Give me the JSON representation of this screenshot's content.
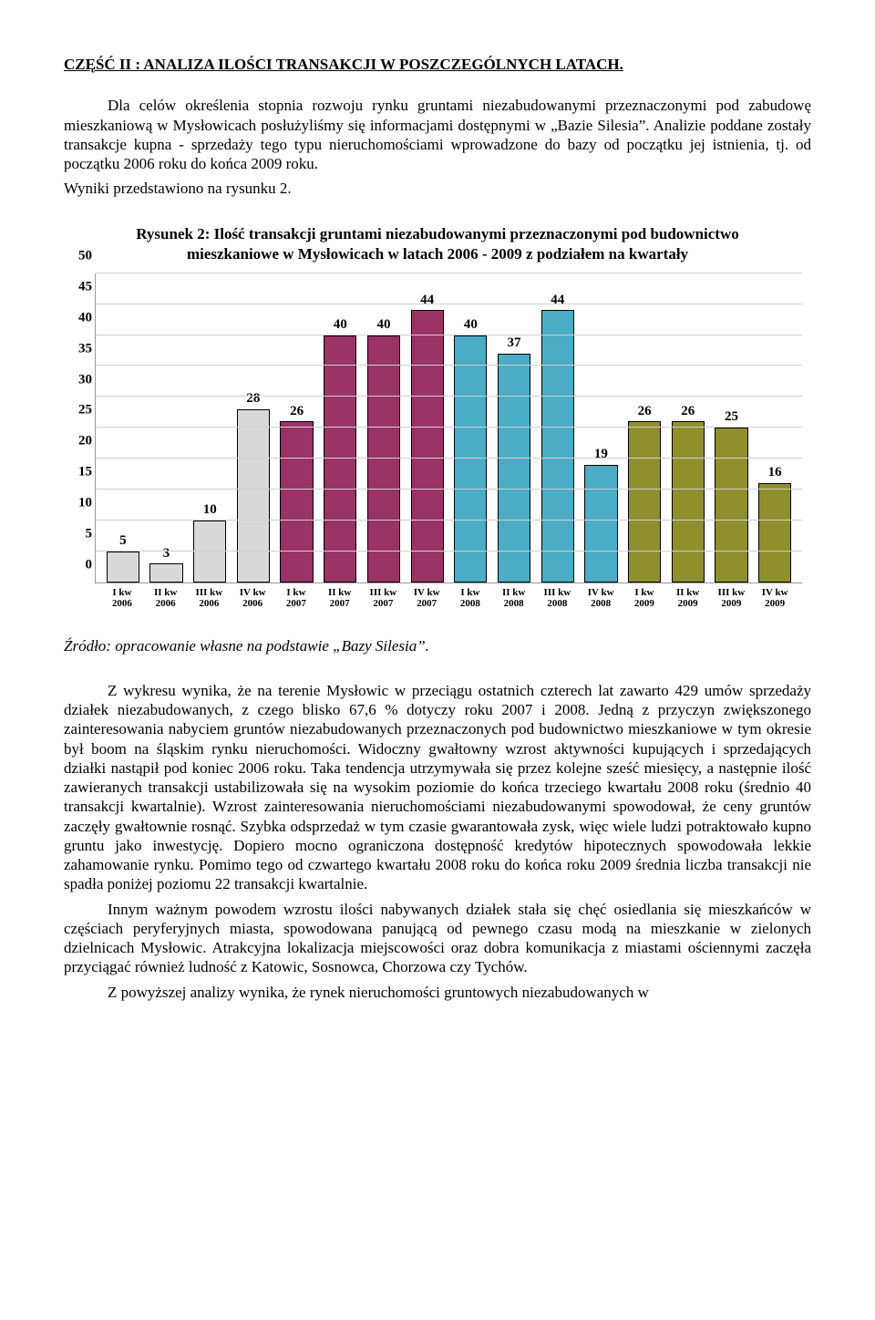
{
  "section_title": "CZĘŚĆ II : ANALIZA ILOŚCI TRANSAKCJI W POSZCZEGÓLNYCH LATACH.",
  "intro_p1": "Dla celów określenia stopnia rozwoju rynku gruntami niezabudowanymi przeznaczonymi pod zabudowę mieszkaniową w Mysłowicach posłużyliśmy się informacjami dostępnymi w „Bazie Silesia”. Analizie poddane zostały transakcje kupna - sprzedaży tego typu nieruchomościami wprowadzone do bazy od początku jej istnienia, tj. od początku 2006 roku do końca 2009 roku.",
  "intro_p2": "Wyniki przedstawiono na rysunku 2.",
  "chart": {
    "title": "Rysunek 2: Ilość transakcji gruntami niezabudowanymi przeznaczonymi pod budownictwo mieszkaniowe w Mysłowicach w latach 2006 - 2009 z podziałem na kwartały",
    "ymax": 50,
    "ytick_step": 5,
    "yticks": [
      0,
      5,
      10,
      15,
      20,
      25,
      30,
      35,
      40,
      45,
      50
    ],
    "grid_color": "#d0d0d0",
    "axis_color": "#9a9a9a",
    "background_color": "#ffffff",
    "value_fontsize": 15,
    "xlabel_fontsize": 11,
    "bar_width": 0.76,
    "series_colors": {
      "2006": "#d9d9d9",
      "2007": "#993366",
      "2008": "#4bacc6",
      "2009": "#8f8f2e"
    },
    "categories": [
      {
        "label_l1": "I kw",
        "label_l2": "2006",
        "value": 5,
        "color": "#d9d9d9"
      },
      {
        "label_l1": "II kw",
        "label_l2": "2006",
        "value": 3,
        "color": "#d9d9d9"
      },
      {
        "label_l1": "III kw",
        "label_l2": "2006",
        "value": 10,
        "color": "#d9d9d9"
      },
      {
        "label_l1": "IV kw",
        "label_l2": "2006",
        "value": 28,
        "color": "#d9d9d9"
      },
      {
        "label_l1": "I kw",
        "label_l2": "2007",
        "value": 26,
        "color": "#993366"
      },
      {
        "label_l1": "II kw",
        "label_l2": "2007",
        "value": 40,
        "color": "#993366"
      },
      {
        "label_l1": "III kw",
        "label_l2": "2007",
        "value": 40,
        "color": "#993366"
      },
      {
        "label_l1": "IV kw",
        "label_l2": "2007",
        "value": 44,
        "color": "#993366"
      },
      {
        "label_l1": "I kw",
        "label_l2": "2008",
        "value": 40,
        "color": "#4bacc6"
      },
      {
        "label_l1": "II kw",
        "label_l2": "2008",
        "value": 37,
        "color": "#4bacc6"
      },
      {
        "label_l1": "III kw",
        "label_l2": "2008",
        "value": 44,
        "color": "#4bacc6"
      },
      {
        "label_l1": "IV kw",
        "label_l2": "2008",
        "value": 19,
        "color": "#4bacc6"
      },
      {
        "label_l1": "I kw",
        "label_l2": "2009",
        "value": 26,
        "color": "#8f8f2e"
      },
      {
        "label_l1": "II kw",
        "label_l2": "2009",
        "value": 26,
        "color": "#8f8f2e"
      },
      {
        "label_l1": "III kw",
        "label_l2": "2009",
        "value": 25,
        "color": "#8f8f2e"
      },
      {
        "label_l1": "IV kw",
        "label_l2": "2009",
        "value": 16,
        "color": "#8f8f2e"
      }
    ]
  },
  "source_line": "Źródło: opracowanie własne na podstawie „Bazy Silesia”.",
  "body_p1": "Z wykresu wynika, że na terenie Mysłowic w przeciągu ostatnich czterech lat zawarto 429 umów sprzedaży działek niezabudowanych, z czego blisko 67,6 % dotyczy roku 2007 i 2008. Jedną z przyczyn zwiększonego zainteresowania nabyciem gruntów niezabudowanych przeznaczonych pod budownictwo mieszkaniowe w tym okresie był boom na śląskim rynku nieruchomości. Widoczny gwałtowny wzrost aktywności kupujących i sprzedających działki nastąpił pod koniec 2006 roku. Taka tendencja utrzymywała się przez kolejne sześć miesięcy, a następnie ilość zawieranych transakcji ustabilizowała się na wysokim poziomie do końca trzeciego kwartału 2008 roku (średnio 40 transakcji kwartalnie). Wzrost zainteresowania nieruchomościami niezabudowanymi spowodował, że ceny gruntów zaczęły gwałtownie rosnąć. Szybka odsprzedaż w tym czasie gwarantowała zysk, więc wiele ludzi potraktowało kupno gruntu jako inwestycję. Dopiero mocno ograniczona dostępność kredytów hipotecznych spowodowała lekkie zahamowanie rynku. Pomimo tego od czwartego kwartału 2008 roku do końca roku 2009 średnia liczba transakcji nie spadła poniżej poziomu 22 transakcji kwartalnie.",
  "body_p2": "Innym ważnym powodem wzrostu ilości nabywanych działek stała się chęć osiedlania się mieszkańców w częściach peryferyjnych miasta, spowodowana panującą od pewnego czasu modą na mieszkanie w zielonych dzielnicach Mysłowic. Atrakcyjna lokalizacja miejscowości oraz dobra komunikacja z miastami ościennymi zaczęła przyciągać również ludność z Katowic, Sosnowca, Chorzowa czy Tychów.",
  "body_p3": "Z powyższej analizy wynika, że rynek nieruchomości gruntowych niezabudowanych w"
}
